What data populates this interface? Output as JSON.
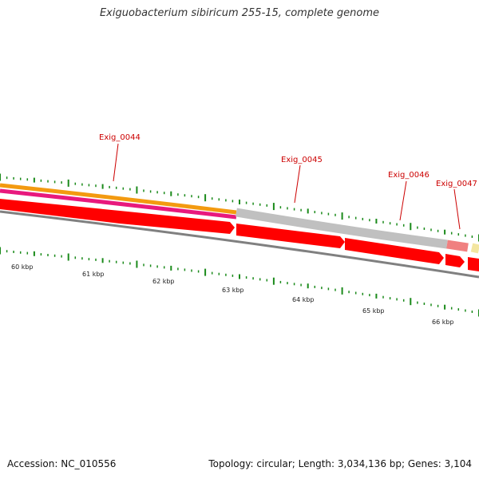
{
  "title": "Exiguobacterium sibiricum 255-15, complete genome",
  "footer": {
    "accession": "Accession: NC_010556",
    "summary": "Topology: circular; Length: 3,034,136 bp; Genes: 3,104"
  },
  "colors": {
    "orange": "#f39a10",
    "pink": "#e8197d",
    "red": "#ff0000",
    "grey_band": "#c0c0c0",
    "backbone": "#808080",
    "tick": "#1a8a1a",
    "label": "#cc0000",
    "light_red": "#f08080",
    "yellow": "#f3e6a0"
  },
  "scale_labels": [
    "60 kbp",
    "61 kbp",
    "62 kbp",
    "63 kbp",
    "64 kbp",
    "65 kbp",
    "66 kbp"
  ],
  "gene_labels": [
    "Exig_0044",
    "Exig_0045",
    "Exig_0046",
    "Exig_0047"
  ]
}
